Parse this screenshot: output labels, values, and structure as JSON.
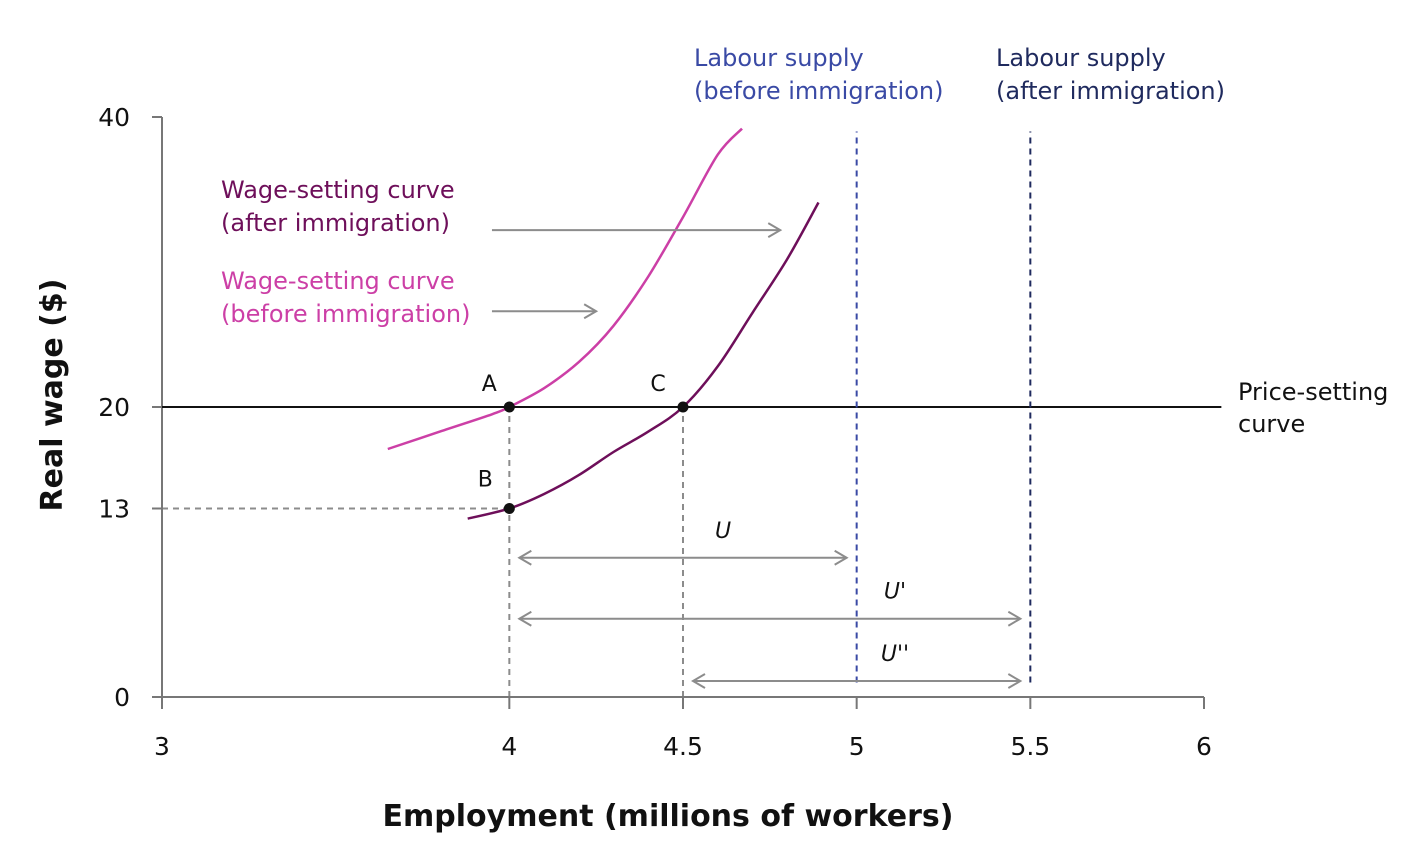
{
  "chart_data": {
    "type": "line",
    "xlabel": "Employment (millions of workers)",
    "ylabel": "Real wage ($)",
    "xlim": [
      3,
      6
    ],
    "ylim": [
      0,
      40
    ],
    "x_ticks": [
      3,
      4,
      4.5,
      5,
      5.5,
      6
    ],
    "x_tick_labels": [
      "3",
      "4",
      "4.5",
      "5",
      "5.5",
      "6"
    ],
    "y_ticks": [
      0,
      13,
      20,
      40
    ],
    "y_tick_labels": [
      "0",
      "13",
      "20",
      "40"
    ],
    "grid": false,
    "series": [
      {
        "name": "Wage-setting curve (before immigration)",
        "kind": "curve",
        "color": "#cc3fa6",
        "x": [
          3.65,
          3.8,
          3.95,
          4.0,
          4.1,
          4.2,
          4.3,
          4.4,
          4.5,
          4.6,
          4.67
        ],
        "y": [
          17.1,
          18.3,
          19.5,
          20.0,
          21.3,
          23.1,
          25.6,
          29.0,
          33.1,
          37.4,
          39.2
        ]
      },
      {
        "name": "Wage-setting curve (after immigration)",
        "kind": "curve",
        "color": "#6e0f5a",
        "x": [
          3.88,
          4.0,
          4.1,
          4.2,
          4.3,
          4.4,
          4.5,
          4.6,
          4.7,
          4.8,
          4.89
        ],
        "y": [
          12.3,
          13.0,
          14.0,
          15.3,
          16.9,
          18.3,
          20.0,
          22.8,
          26.5,
          30.2,
          34.1
        ]
      },
      {
        "name": "Price-setting curve",
        "kind": "hline",
        "color": "#111111",
        "y": 20,
        "x_range": [
          3,
          6.05
        ]
      },
      {
        "name": "Labour supply (before immigration)",
        "kind": "vline",
        "color": "#3a4aa5",
        "x": 5,
        "y_range": [
          1,
          39
        ]
      },
      {
        "name": "Labour supply (after immigration)",
        "kind": "vline",
        "color": "#1f2a5e",
        "x": 5.5,
        "y_range": [
          1,
          39
        ]
      }
    ],
    "points": [
      {
        "label": "A",
        "x": 4,
        "y": 20
      },
      {
        "label": "B",
        "x": 4,
        "y": 13
      },
      {
        "label": "C",
        "x": 4.5,
        "y": 20
      }
    ],
    "reference_lines": [
      {
        "from": [
          3,
          13
        ],
        "to": [
          4,
          13
        ]
      },
      {
        "from": [
          4,
          0
        ],
        "to": [
          4,
          20
        ]
      },
      {
        "from": [
          4.5,
          0
        ],
        "to": [
          4.5,
          20
        ]
      }
    ],
    "spans": [
      {
        "label": "U",
        "from": 4,
        "to": 5,
        "y": 9.6
      },
      {
        "label": "U'",
        "from": 4,
        "to": 5.5,
        "y": 5.4
      },
      {
        "label": "U''",
        "from": 4.5,
        "to": 5.5,
        "y": 1.1
      }
    ],
    "shift_arrows": [
      {
        "from": [
          3.95,
          32.2
        ],
        "to": [
          4.78,
          32.2
        ]
      },
      {
        "from": [
          3.95,
          26.6
        ],
        "to": [
          4.25,
          26.6
        ]
      }
    ],
    "annotations": {
      "ws_after": [
        "Wage-setting curve",
        "(after immigration)"
      ],
      "ws_before": [
        "Wage-setting curve",
        "(before immigration)"
      ],
      "ls_before": [
        "Labour supply",
        "(before immigration)"
      ],
      "ls_after": [
        "Labour supply",
        "(after immigration)"
      ],
      "ps": [
        "Price-setting",
        "curve"
      ]
    },
    "colors": {
      "ws_before": "#cc3fa6",
      "ws_after": "#6e0f5a",
      "ls_before": "#3a4aa5",
      "ls_after": "#1f2a5e",
      "guide": "#8c8c8c",
      "axis": "#777777"
    }
  }
}
